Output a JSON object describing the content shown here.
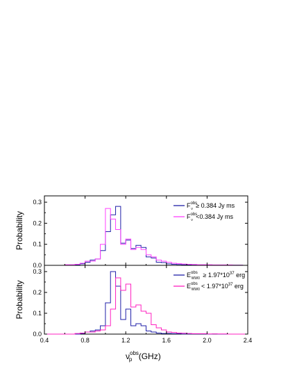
{
  "chart_data": [
    {
      "type": "histogram",
      "panel": "top",
      "ylabel": "Probability",
      "ylim": [
        0,
        0.33
      ],
      "yticks": [
        "0.0",
        "0.1",
        "0.2",
        "0.3"
      ],
      "xlim": [
        0.4,
        2.4
      ],
      "bins": [
        0.4,
        0.45,
        0.5,
        0.55,
        0.6,
        0.65,
        0.7,
        0.75,
        0.8,
        0.85,
        0.9,
        0.95,
        1.0,
        1.05,
        1.1,
        1.15,
        1.2,
        1.25,
        1.3,
        1.35,
        1.4,
        1.45,
        1.5,
        1.55,
        1.6,
        1.65,
        1.7,
        1.75,
        1.8,
        1.85,
        1.9,
        1.95,
        2.0,
        2.05,
        2.1,
        2.15,
        2.2,
        2.25,
        2.3,
        2.35
      ],
      "bin_width": 0.05,
      "legend_position": "top-right",
      "series": [
        {
          "legend_main": "F",
          "legend_sup": "obs",
          "legend_sub": "ν",
          "legend_rest": " ≥ 0.384 Jy ms",
          "color": "#1f1fa8",
          "values": [
            0,
            0,
            0,
            0,
            0,
            0.002,
            0.003,
            0.007,
            0.015,
            0.025,
            0.03,
            0.07,
            0.16,
            0.24,
            0.28,
            0.105,
            0.12,
            0.08,
            0.095,
            0.085,
            0.04,
            0.035,
            0.015,
            0.013,
            0.007,
            0.005,
            0.004,
            0.003,
            0.003,
            0.002,
            0.002,
            0.002,
            0.001,
            0.001,
            0.001,
            0.001,
            0.001,
            0.001,
            0.001,
            0
          ]
        },
        {
          "legend_main": "F",
          "legend_sup": "obs",
          "legend_sub": "ν",
          "legend_rest": " <0.384 Jy ms",
          "color": "#ff40ff",
          "values": [
            0,
            0,
            0,
            0,
            0.003,
            0.003,
            0.005,
            0.01,
            0.02,
            0.02,
            0.03,
            0.1,
            0.27,
            0.22,
            0.17,
            0.1,
            0.125,
            0.075,
            0.085,
            0.075,
            0.05,
            0.04,
            0.025,
            0.02,
            0.015,
            0.01,
            0.008,
            0.006,
            0.005,
            0.004,
            0.003,
            0.003,
            0.003,
            0.002,
            0.002,
            0.002,
            0.002,
            0.001,
            0.001,
            0
          ]
        }
      ]
    },
    {
      "type": "histogram",
      "panel": "bottom",
      "ylabel": "Probability",
      "ylim": [
        0,
        0.33
      ],
      "yticks": [
        "0.0",
        "0.1",
        "0.2",
        "0.3"
      ],
      "xlim": [
        0.4,
        2.4
      ],
      "xticks": [
        "0.4",
        "0.8",
        "1.2",
        "1.6",
        "2.0",
        "2.4"
      ],
      "xlabel_main": "ν",
      "xlabel_sup": "obs",
      "xlabel_sub": "p",
      "xlabel_rest": "  (GHz)",
      "bins": [
        0.4,
        0.45,
        0.5,
        0.55,
        0.6,
        0.65,
        0.7,
        0.75,
        0.8,
        0.85,
        0.9,
        0.95,
        1.0,
        1.05,
        1.1,
        1.15,
        1.2,
        1.25,
        1.3,
        1.35,
        1.4,
        1.45,
        1.5,
        1.55,
        1.6,
        1.65,
        1.7,
        1.75,
        1.8,
        1.85,
        1.9,
        1.95,
        2.0,
        2.05,
        2.1,
        2.15,
        2.2,
        2.25,
        2.3,
        2.35
      ],
      "bin_width": 0.05,
      "legend_position": "top-right",
      "series": [
        {
          "legend_main": "E",
          "legend_sup": "obs",
          "legend_sub": "WW0",
          "legend_rest": " ≥ 1.97*10",
          "legend_exp": "37",
          "legend_unit": " erg",
          "color": "#1f1fa8",
          "values": [
            0,
            0,
            0,
            0,
            0,
            0,
            0,
            0.003,
            0.01,
            0.015,
            0.02,
            0.04,
            0.15,
            0.3,
            0.23,
            0.07,
            0.12,
            0.04,
            0.05,
            0.04,
            0.015,
            0.01,
            0.005,
            0.003,
            0.003,
            0.002,
            0.002,
            0.001,
            0.001,
            0.001,
            0.001,
            0.001,
            0,
            0.001,
            0,
            0,
            0,
            0,
            0,
            0
          ]
        },
        {
          "legend_main": "E",
          "legend_sup": "obs",
          "legend_sub": "WW0",
          "legend_rest": "< 1.97*10",
          "legend_exp": "37",
          "legend_unit": " erg",
          "color": "#ff20c0",
          "values": [
            0,
            0,
            0,
            0,
            0,
            0,
            0.003,
            0.005,
            0.01,
            0.01,
            0.015,
            0.02,
            0.04,
            0.12,
            0.27,
            0.21,
            0.24,
            0.13,
            0.14,
            0.11,
            0.1,
            0.045,
            0.03,
            0.02,
            0.01,
            0.008,
            0.005,
            0.004,
            0.003,
            0.002,
            0.002,
            0.002,
            0.001,
            0.001,
            0.001,
            0.001,
            0,
            0,
            0,
            0
          ]
        }
      ]
    }
  ]
}
